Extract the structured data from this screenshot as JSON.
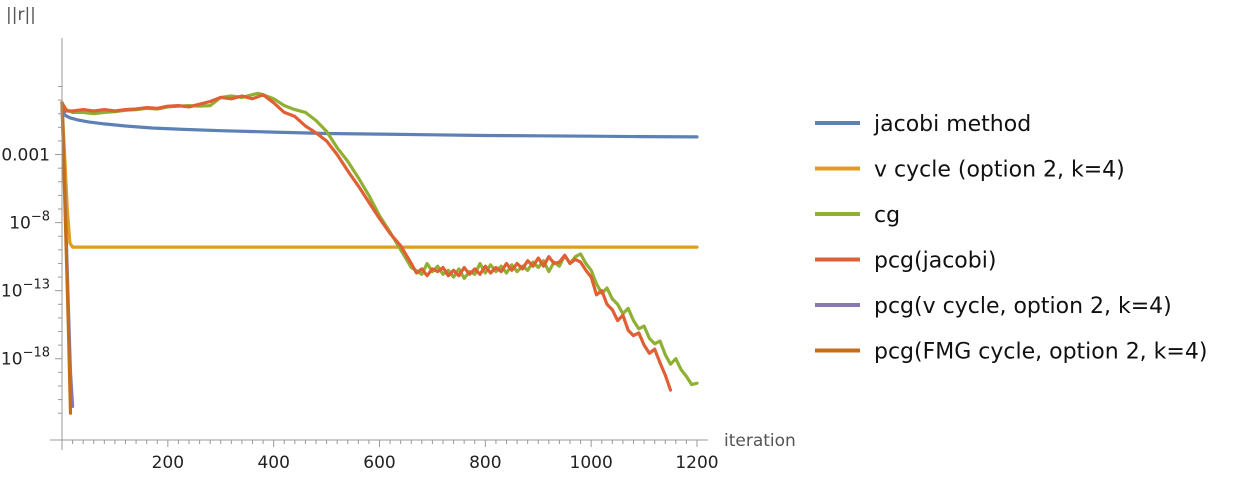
{
  "chart_data": {
    "type": "line",
    "title": "",
    "xlabel": "iteration",
    "ylabel": "||r||",
    "yscale": "log",
    "xlim": [
      0,
      1210
    ],
    "ylim_log10": [
      -22.5,
      3.8
    ],
    "grid": false,
    "legend_position": "right",
    "x_ticks": [
      200,
      400,
      600,
      800,
      1000,
      1200
    ],
    "y_ticks": [
      {
        "exp": -3,
        "label": "0.001"
      },
      {
        "exp": -8,
        "label": "10",
        "sup": "−8"
      },
      {
        "exp": -13,
        "label": "10",
        "sup": "−13"
      },
      {
        "exp": -18,
        "label": "10",
        "sup": "−18"
      }
    ],
    "series": [
      {
        "name": "jacobi method",
        "color": "#5E81B5",
        "x": [
          0,
          5,
          15,
          30,
          50,
          80,
          120,
          170,
          230,
          300,
          400,
          500,
          600,
          700,
          800,
          900,
          1000,
          1100,
          1200
        ],
        "log10": [
          0.8,
          -0.1,
          -0.3,
          -0.45,
          -0.6,
          -0.75,
          -0.9,
          -1.05,
          -1.15,
          -1.25,
          -1.35,
          -1.45,
          -1.5,
          -1.55,
          -1.6,
          -1.62,
          -1.65,
          -1.68,
          -1.7
        ]
      },
      {
        "name": "v cycle (option 2, k=4)",
        "color": "#E19C24",
        "x": [
          0,
          5,
          10,
          15,
          20,
          100,
          300,
          500,
          700,
          900,
          1100,
          1200
        ],
        "log10": [
          0.8,
          -3.0,
          -7.0,
          -9.5,
          -9.8,
          -9.8,
          -9.8,
          -9.8,
          -9.8,
          -9.8,
          -9.8,
          -9.8
        ]
      },
      {
        "name": "cg",
        "color": "#8FB032",
        "x": [
          0,
          8,
          20,
          40,
          60,
          80,
          100,
          120,
          140,
          160,
          180,
          200,
          220,
          240,
          260,
          280,
          300,
          320,
          340,
          360,
          370,
          380,
          400,
          420,
          440,
          460,
          480,
          500,
          520,
          540,
          560,
          580,
          600,
          620,
          640,
          660,
          680,
          690,
          700,
          710,
          720,
          730,
          740,
          750,
          760,
          770,
          780,
          790,
          800,
          810,
          820,
          830,
          840,
          850,
          860,
          870,
          880,
          890,
          900,
          910,
          920,
          930,
          940,
          950,
          960,
          970,
          980,
          990,
          1000,
          1010,
          1020,
          1030,
          1040,
          1050,
          1060,
          1070,
          1080,
          1090,
          1100,
          1110,
          1120,
          1130,
          1140,
          1150,
          1160,
          1170,
          1180,
          1190,
          1200
        ],
        "log10": [
          0.8,
          0.3,
          0.1,
          0.1,
          0.0,
          0.1,
          0.15,
          0.25,
          0.3,
          0.4,
          0.35,
          0.5,
          0.55,
          0.6,
          0.55,
          0.6,
          1.2,
          1.3,
          1.2,
          1.4,
          1.5,
          1.4,
          1.1,
          0.6,
          0.3,
          0.1,
          -0.5,
          -1.3,
          -2.5,
          -3.5,
          -4.7,
          -6.0,
          -7.5,
          -8.7,
          -10.0,
          -11.3,
          -11.8,
          -11.0,
          -11.6,
          -11.2,
          -11.8,
          -11.5,
          -12.0,
          -11.4,
          -12.1,
          -11.6,
          -11.8,
          -11.0,
          -11.7,
          -11.1,
          -11.6,
          -11.2,
          -11.7,
          -11.1,
          -11.6,
          -11.2,
          -11.5,
          -10.9,
          -11.3,
          -10.8,
          -11.6,
          -10.9,
          -11.2,
          -10.4,
          -11.0,
          -10.5,
          -10.3,
          -11.0,
          -11.5,
          -12.5,
          -13.2,
          -12.8,
          -13.6,
          -14.0,
          -14.7,
          -14.3,
          -15.2,
          -15.8,
          -15.6,
          -16.5,
          -16.9,
          -16.7,
          -17.7,
          -18.4,
          -18.0,
          -18.8,
          -19.3,
          -19.9,
          -19.8
        ]
      },
      {
        "name": "pcg(jacobi)",
        "color": "#E05F35",
        "x": [
          0,
          8,
          20,
          40,
          60,
          80,
          100,
          120,
          140,
          160,
          180,
          200,
          220,
          240,
          260,
          280,
          300,
          320,
          340,
          360,
          380,
          400,
          420,
          440,
          460,
          480,
          500,
          520,
          540,
          560,
          580,
          600,
          620,
          640,
          660,
          670,
          680,
          690,
          700,
          710,
          720,
          730,
          740,
          750,
          760,
          770,
          780,
          790,
          800,
          810,
          820,
          830,
          840,
          850,
          860,
          870,
          880,
          890,
          900,
          910,
          920,
          930,
          940,
          950,
          960,
          970,
          980,
          990,
          1000,
          1010,
          1020,
          1030,
          1040,
          1050,
          1060,
          1070,
          1080,
          1090,
          1100,
          1110,
          1120,
          1130,
          1140,
          1150
        ],
        "log10": [
          0.8,
          0.2,
          0.2,
          0.3,
          0.2,
          0.3,
          0.2,
          0.3,
          0.35,
          0.45,
          0.4,
          0.55,
          0.6,
          0.5,
          0.7,
          0.9,
          1.2,
          1.1,
          1.3,
          1.1,
          1.4,
          0.8,
          0.1,
          -0.2,
          -0.9,
          -1.4,
          -2.0,
          -3.0,
          -4.2,
          -5.3,
          -6.5,
          -7.7,
          -8.8,
          -9.7,
          -11.0,
          -11.7,
          -11.4,
          -11.9,
          -11.4,
          -11.6,
          -11.3,
          -11.9,
          -11.5,
          -11.9,
          -11.3,
          -11.8,
          -11.4,
          -11.8,
          -11.2,
          -11.7,
          -11.3,
          -11.6,
          -11.0,
          -11.5,
          -11.0,
          -11.4,
          -10.8,
          -11.2,
          -10.6,
          -11.2,
          -10.5,
          -11.0,
          -10.9,
          -10.4,
          -11.0,
          -10.7,
          -10.9,
          -11.5,
          -12.0,
          -13.3,
          -13.0,
          -14.0,
          -14.4,
          -15.2,
          -14.8,
          -15.9,
          -16.3,
          -16.1,
          -17.0,
          -17.6,
          -17.3,
          -18.3,
          -19.2,
          -20.3
        ]
      },
      {
        "name": "pcg(v cycle, option 2, k=4)",
        "color": "#8778B3",
        "x": [
          0,
          4,
          8,
          12,
          16,
          20
        ],
        "log10": [
          0.8,
          -4.0,
          -9.0,
          -14.0,
          -19.0,
          -21.5
        ]
      },
      {
        "name": "pcg(FMG cycle, option 2, k=4)",
        "color": "#C56E1A",
        "x": [
          0,
          4,
          8,
          12,
          16
        ],
        "log10": [
          0.8,
          -4.5,
          -10.0,
          -15.5,
          -22.0
        ]
      }
    ]
  }
}
